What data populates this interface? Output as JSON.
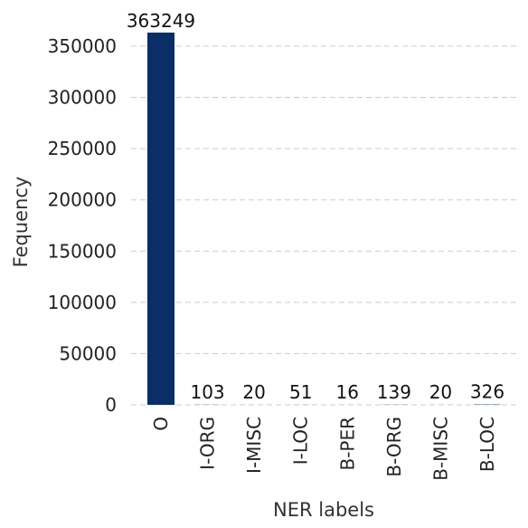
{
  "chart_data": {
    "type": "bar",
    "title": "",
    "xlabel": "NER labels",
    "ylabel": "Fequency",
    "categories": [
      "O",
      "I-ORG",
      "I-MISC",
      "I-LOC",
      "B-PER",
      "B-ORG",
      "B-MISC",
      "B-LOC"
    ],
    "values": [
      363249,
      103,
      20,
      51,
      16,
      139,
      20,
      326
    ],
    "data_labels": [
      "363249",
      "103",
      "20",
      "51",
      "16",
      "139",
      "20",
      "326"
    ],
    "ylim": [
      0,
      365000
    ],
    "yticks": [
      0,
      50000,
      100000,
      150000,
      200000,
      250000,
      300000,
      350000
    ],
    "ytick_labels": [
      "0",
      "50000",
      "100000",
      "150000",
      "200000",
      "250000",
      "300000",
      "350000"
    ],
    "grid": "horizontal dashed",
    "legend": "none",
    "colors": {
      "bar": "#0b2e66",
      "grid": "#cccccc",
      "text": "#222222"
    }
  }
}
